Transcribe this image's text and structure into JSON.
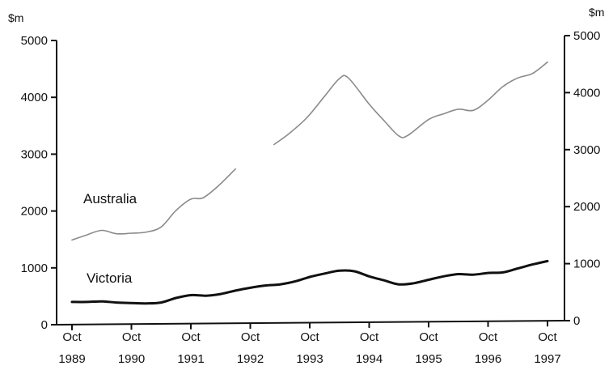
{
  "chart_data": {
    "type": "line",
    "y_unit_left": "$m",
    "y_unit_right": "$m",
    "x_range": [
      1989.75,
      1997.75
    ],
    "ylim": [
      0,
      5000
    ],
    "y_ticks": [
      0,
      1000,
      2000,
      3000,
      4000,
      5000
    ],
    "y_tick_labels": [
      "0",
      "1000",
      "2000",
      "3000",
      "4000",
      "5000"
    ],
    "x_tick_values": [
      1989.75,
      1990.75,
      1991.75,
      1992.75,
      1993.75,
      1994.75,
      1995.75,
      1996.75,
      1997.75
    ],
    "x_tick_labels": [
      {
        "month": "Oct",
        "year": "1989"
      },
      {
        "month": "Oct",
        "year": "1990"
      },
      {
        "month": "Oct",
        "year": "1991"
      },
      {
        "month": "Oct",
        "year": "1992"
      },
      {
        "month": "Oct",
        "year": "1993"
      },
      {
        "month": "Oct",
        "year": "1994"
      },
      {
        "month": "Oct",
        "year": "1995"
      },
      {
        "month": "Oct",
        "year": "1996"
      },
      {
        "month": "Oct",
        "year": "1997"
      }
    ],
    "grid": false,
    "series": [
      {
        "name": "Australia",
        "color": "#8a8a8a",
        "points": [
          [
            1989.75,
            1490
          ],
          [
            1990.0,
            1580
          ],
          [
            1990.25,
            1660
          ],
          [
            1990.5,
            1600
          ],
          [
            1990.75,
            1610
          ],
          [
            1991.0,
            1630
          ],
          [
            1991.25,
            1720
          ],
          [
            1991.5,
            2010
          ],
          [
            1991.75,
            2210
          ],
          [
            1991.95,
            2230
          ],
          [
            1992.2,
            2430
          ],
          [
            1992.5,
            2740
          ],
          null,
          [
            1993.15,
            3170
          ],
          [
            1993.4,
            3360
          ],
          [
            1993.7,
            3640
          ],
          [
            1994.0,
            4020
          ],
          [
            1994.25,
            4330
          ],
          [
            1994.4,
            4340
          ],
          [
            1994.75,
            3880
          ],
          [
            1995.0,
            3590
          ],
          [
            1995.25,
            3320
          ],
          [
            1995.4,
            3330
          ],
          [
            1995.75,
            3610
          ],
          [
            1996.0,
            3710
          ],
          [
            1996.25,
            3790
          ],
          [
            1996.5,
            3770
          ],
          [
            1996.75,
            3950
          ],
          [
            1997.0,
            4190
          ],
          [
            1997.25,
            4340
          ],
          [
            1997.5,
            4420
          ],
          [
            1997.75,
            4620
          ]
        ]
      },
      {
        "name": "Victoria",
        "color": "#111111",
        "points": [
          [
            1989.75,
            400
          ],
          [
            1990.0,
            400
          ],
          [
            1990.25,
            410
          ],
          [
            1990.5,
            390
          ],
          [
            1990.75,
            380
          ],
          [
            1991.0,
            375
          ],
          [
            1991.25,
            390
          ],
          [
            1991.5,
            470
          ],
          [
            1991.75,
            520
          ],
          [
            1992.0,
            510
          ],
          [
            1992.25,
            540
          ],
          [
            1992.5,
            600
          ],
          [
            1992.75,
            650
          ],
          [
            1993.0,
            690
          ],
          [
            1993.25,
            710
          ],
          [
            1993.5,
            760
          ],
          [
            1993.75,
            840
          ],
          [
            1994.0,
            900
          ],
          [
            1994.25,
            950
          ],
          [
            1994.5,
            940
          ],
          [
            1994.75,
            850
          ],
          [
            1995.0,
            780
          ],
          [
            1995.25,
            710
          ],
          [
            1995.5,
            730
          ],
          [
            1995.75,
            790
          ],
          [
            1996.0,
            850
          ],
          [
            1996.25,
            890
          ],
          [
            1996.5,
            880
          ],
          [
            1996.75,
            910
          ],
          [
            1997.0,
            920
          ],
          [
            1997.25,
            990
          ],
          [
            1997.5,
            1060
          ],
          [
            1997.75,
            1120
          ]
        ]
      }
    ]
  }
}
